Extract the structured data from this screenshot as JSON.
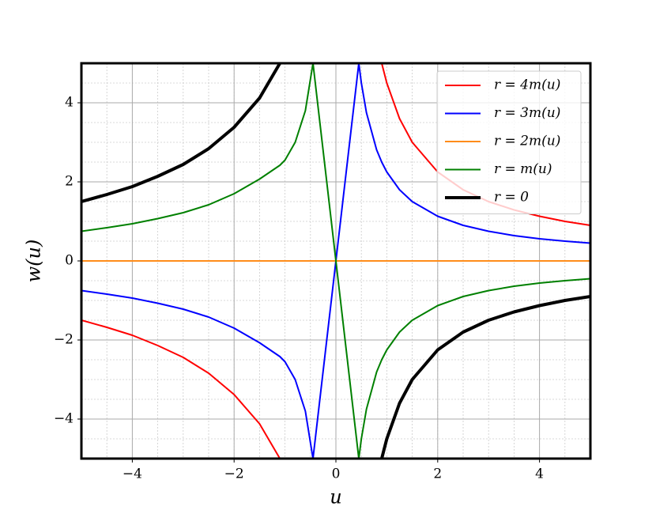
{
  "chart_data": {
    "type": "line",
    "x_label": "u",
    "y_label": "w(u)",
    "x": [
      -5,
      -4.5,
      -4,
      -3.5,
      -3,
      -2.5,
      -2,
      -1.5,
      -1.1,
      -1,
      -0.8,
      -0.6,
      -0.45,
      0.45,
      0.5,
      0.6,
      0.8,
      0.9,
      1,
      1.25,
      1.5,
      2,
      2.5,
      3,
      3.5,
      4,
      4.5,
      5
    ],
    "series": [
      {
        "name": "r = 4m(u)",
        "color": "#ff0000",
        "width": 2,
        "values": [
          -1.5,
          -1.68,
          -1.88,
          -2.14,
          -2.44,
          -2.84,
          -3.38,
          -4.12,
          -5,
          null,
          null,
          null,
          null,
          null,
          null,
          null,
          null,
          5,
          4.5,
          3.6,
          3,
          2.25,
          1.8,
          1.5,
          1.29,
          1.13,
          1,
          0.9
        ]
      },
      {
        "name": "r = 3m(u)",
        "color": "#0000ff",
        "width": 2,
        "values": [
          -0.75,
          -0.84,
          -0.94,
          -1.07,
          -1.22,
          -1.42,
          -1.7,
          -2.07,
          -2.42,
          -2.55,
          -3,
          -3.8,
          -5,
          5,
          4.5,
          3.75,
          2.81,
          2.5,
          2.25,
          1.8,
          1.5,
          1.13,
          0.9,
          0.75,
          0.64,
          0.56,
          0.5,
          0.45
        ]
      },
      {
        "name": "r = 2m(u)",
        "color": "#ff8c1a",
        "width": 2,
        "values": [
          0,
          0,
          0,
          0,
          0,
          0,
          0,
          0,
          0,
          0,
          0,
          0,
          0,
          0,
          0,
          0,
          0,
          0,
          0,
          0,
          0,
          0,
          0,
          0,
          0,
          0,
          0,
          0
        ]
      },
      {
        "name": "r = m(u)",
        "color": "#008000",
        "width": 2,
        "values": [
          0.75,
          0.84,
          0.94,
          1.07,
          1.22,
          1.42,
          1.7,
          2.07,
          2.42,
          2.55,
          3,
          3.8,
          5,
          -5,
          -4.5,
          -3.75,
          -2.81,
          -2.5,
          -2.25,
          -1.8,
          -1.5,
          -1.13,
          -0.9,
          -0.75,
          -0.64,
          -0.56,
          -0.5,
          -0.45
        ]
      },
      {
        "name": "r = 0",
        "color": "#000000",
        "width": 4,
        "values": [
          1.5,
          1.68,
          1.88,
          2.14,
          2.44,
          2.84,
          3.38,
          4.12,
          5,
          null,
          null,
          null,
          null,
          null,
          null,
          null,
          null,
          -5,
          -4.5,
          -3.6,
          -3,
          -2.25,
          -1.8,
          -1.5,
          -1.29,
          -1.13,
          -1,
          -0.9
        ]
      }
    ],
    "xlim": [
      -5,
      5
    ],
    "ylim": [
      -5,
      5
    ],
    "xticks": [
      {
        "value": -4,
        "label": "−4"
      },
      {
        "value": -2,
        "label": "−2"
      },
      0,
      2,
      4
    ],
    "yticks": [
      {
        "value": -4,
        "label": "−4"
      },
      {
        "value": -2,
        "label": "−2"
      },
      0,
      2,
      4
    ],
    "grid": true,
    "minor_grid": true,
    "legend": "upper right"
  }
}
